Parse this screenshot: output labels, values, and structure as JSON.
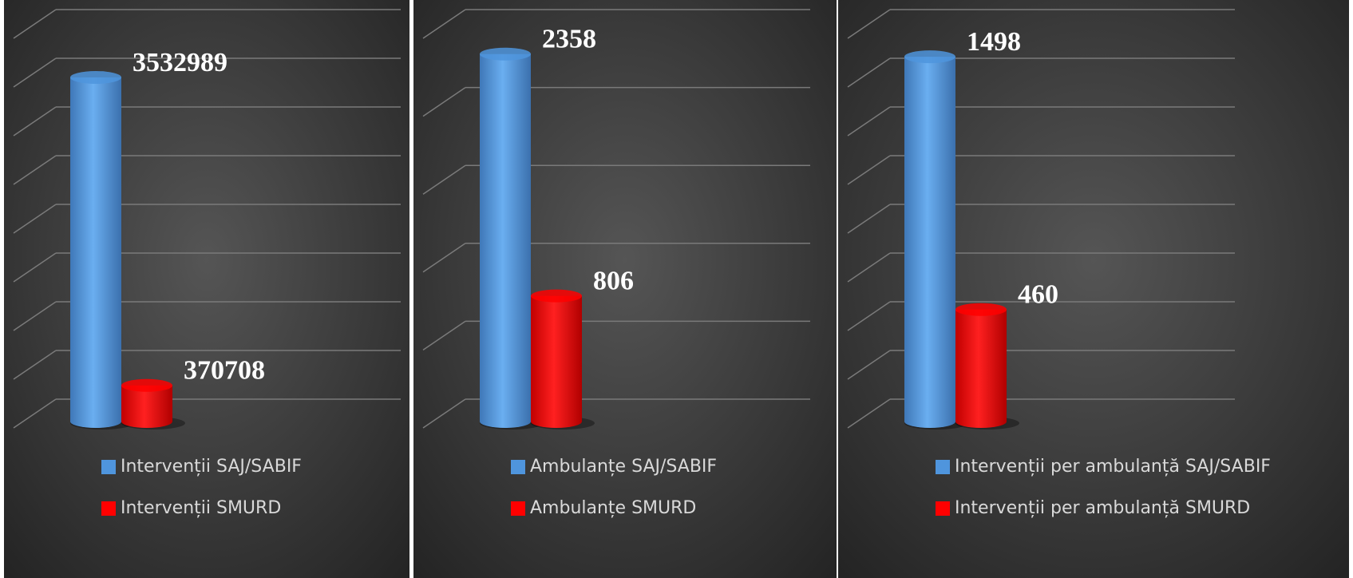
{
  "chart_data": [
    {
      "type": "cylinder",
      "ylim": [
        0,
        4000000
      ],
      "yticks": [
        0,
        500000,
        1000000,
        1500000,
        2000000,
        2500000,
        3000000,
        3500000,
        4000000
      ],
      "grid": true,
      "series": [
        {
          "name": "Intervenții SAJ/SABIF",
          "color": "#4f95dd",
          "values": [
            3532989
          ]
        },
        {
          "name": "Intervenții SMURD",
          "color": "#ff0000",
          "values": [
            370708
          ]
        }
      ]
    },
    {
      "type": "cylinder",
      "ylim": [
        0,
        2500
      ],
      "yticks": [
        0,
        500,
        1000,
        1500,
        2000,
        2500
      ],
      "grid": true,
      "series": [
        {
          "name": "Ambulanțe SAJ/SABIF",
          "color": "#4f95dd",
          "values": [
            2358
          ]
        },
        {
          "name": "Ambulanțe SMURD",
          "color": "#ff0000",
          "values": [
            806
          ]
        }
      ]
    },
    {
      "type": "cylinder",
      "ylim": [
        0,
        1600
      ],
      "yticks": [
        0,
        200,
        400,
        600,
        800,
        1000,
        1200,
        1400,
        1600
      ],
      "grid": true,
      "series": [
        {
          "name": "Intervenții per ambulanță SAJ/SABIF",
          "color": "#4f95dd",
          "values": [
            1498
          ]
        },
        {
          "name": "Intervenții per ambulanță SMURD",
          "color": "#ff0000",
          "values": [
            460
          ]
        }
      ]
    }
  ]
}
